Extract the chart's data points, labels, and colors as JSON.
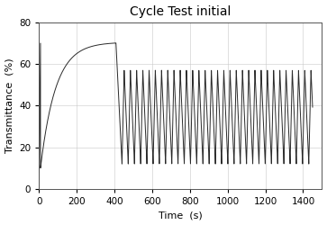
{
  "title": "Cycle Test initial",
  "xlabel": "Time  (s)",
  "ylabel": "Transmittance  (%)",
  "xlim": [
    0,
    1500
  ],
  "ylim": [
    0,
    80
  ],
  "xticks": [
    0,
    200,
    400,
    600,
    800,
    1000,
    1200,
    1400
  ],
  "yticks": [
    0,
    20,
    40,
    60,
    80
  ],
  "line_color": "#2a2a2a",
  "background_color": "#ffffff",
  "grid_color": "#c8c8c8",
  "tau": 80,
  "rise_end_time": 400,
  "rise_start_val": 10,
  "rise_end_val": 70.5,
  "spike_time": 8,
  "spike_val": 70,
  "cycle_start_time": 440,
  "cycle_end_time": 1450,
  "cycle_period": 33,
  "cycle_max": 57,
  "cycle_min": 12,
  "title_fontsize": 10,
  "label_fontsize": 8,
  "tick_fontsize": 7.5
}
